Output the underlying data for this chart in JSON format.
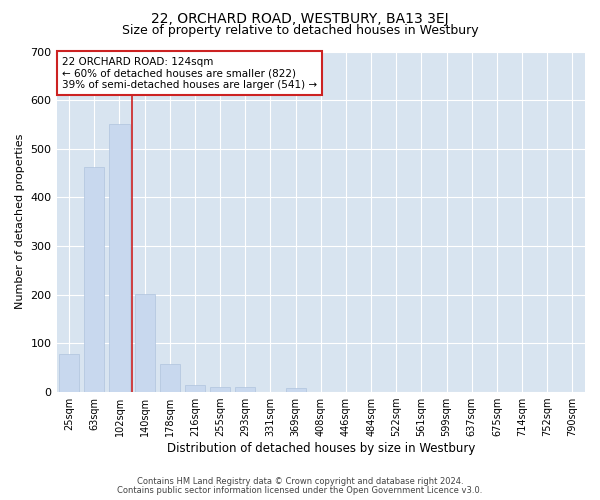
{
  "title": "22, ORCHARD ROAD, WESTBURY, BA13 3EJ",
  "subtitle": "Size of property relative to detached houses in Westbury",
  "xlabel": "Distribution of detached houses by size in Westbury",
  "ylabel": "Number of detached properties",
  "categories": [
    "25sqm",
    "63sqm",
    "102sqm",
    "140sqm",
    "178sqm",
    "216sqm",
    "255sqm",
    "293sqm",
    "331sqm",
    "369sqm",
    "408sqm",
    "446sqm",
    "484sqm",
    "522sqm",
    "561sqm",
    "599sqm",
    "637sqm",
    "675sqm",
    "714sqm",
    "752sqm",
    "790sqm"
  ],
  "values": [
    78,
    462,
    551,
    201,
    57,
    15,
    10,
    10,
    0,
    9,
    0,
    0,
    0,
    0,
    0,
    0,
    0,
    0,
    0,
    0,
    0
  ],
  "bar_color": "#c8d8ee",
  "bar_edge_color": "#b0c4de",
  "vline_x": 2.5,
  "vline_color": "#cc2222",
  "annotation_text": "22 ORCHARD ROAD: 124sqm\n← 60% of detached houses are smaller (822)\n39% of semi-detached houses are larger (541) →",
  "annotation_box_color": "#ffffff",
  "annotation_box_edge": "#cc2222",
  "ylim": [
    0,
    700
  ],
  "yticks": [
    0,
    100,
    200,
    300,
    400,
    500,
    600,
    700
  ],
  "fig_bg_color": "#ffffff",
  "plot_bg_color": "#d8e4f0",
  "grid_color": "#ffffff",
  "footer1": "Contains HM Land Registry data © Crown copyright and database right 2024.",
  "footer2": "Contains public sector information licensed under the Open Government Licence v3.0.",
  "title_fontsize": 10,
  "subtitle_fontsize": 9,
  "tick_fontsize": 7,
  "annot_fontsize": 7.5,
  "ylabel_fontsize": 8,
  "xlabel_fontsize": 8.5,
  "footer_fontsize": 6
}
